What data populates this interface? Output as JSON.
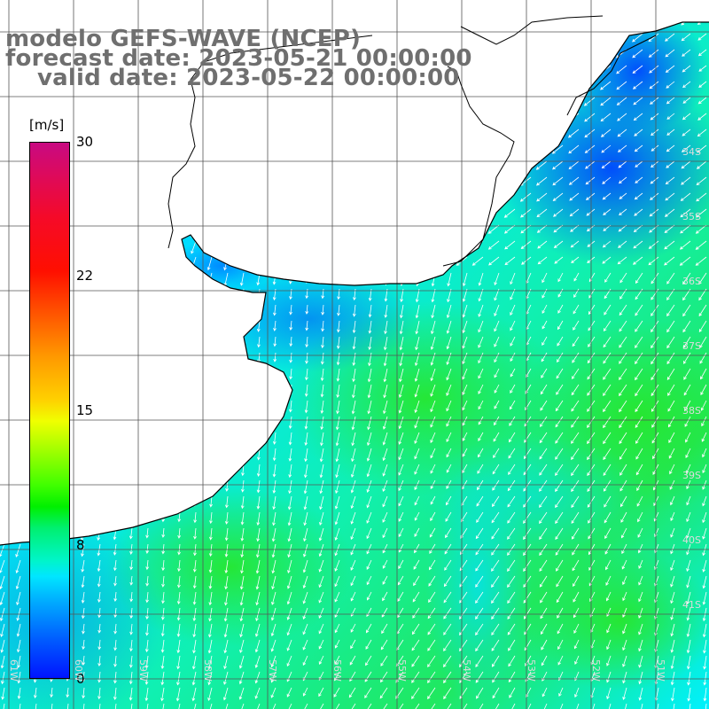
{
  "title": {
    "line1": "modelo GEFS-WAVE (NCEP)",
    "line2": "forecast date: 2023-05-21 00:00:00",
    "line3": "valid date: 2023-05-22 00:00:00"
  },
  "colorbar": {
    "unit": "[m/s]",
    "ticks": [
      {
        "label": "30"
      },
      {
        "label": "22"
      },
      {
        "label": "15"
      },
      {
        "label": "8"
      },
      {
        "label": "0"
      }
    ]
  },
  "lat_labels": [
    "34S",
    "35S",
    "36S",
    "37S",
    "38S",
    "39S",
    "40S",
    "41S"
  ],
  "lon_labels": [
    "61W",
    "60W",
    "59W",
    "58W",
    "57W",
    "56W",
    "55W",
    "54W",
    "53W",
    "52W",
    "51W"
  ],
  "colors": {
    "land": "#ffffff",
    "grid": "#555555",
    "coast": "#000000",
    "arrows": "#ffffff"
  }
}
